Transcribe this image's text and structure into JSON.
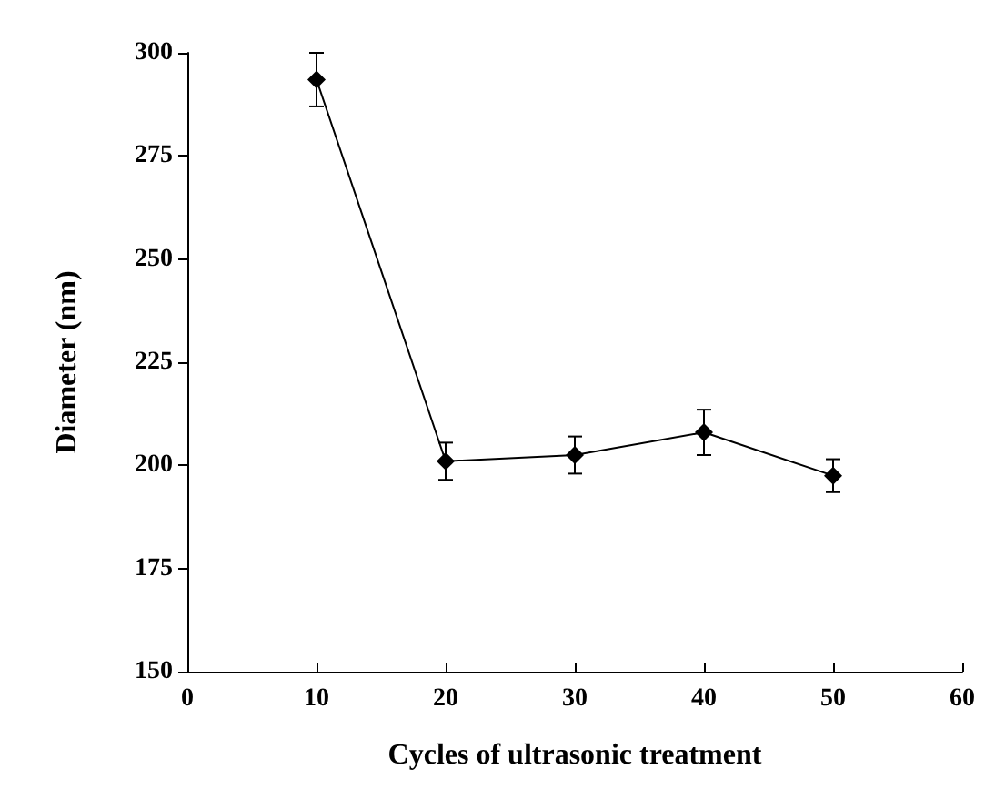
{
  "chart_data": {
    "type": "line",
    "xlabel": "Cycles of ultrasonic treatment",
    "ylabel": "Diameter (nm)",
    "x": [
      10,
      20,
      30,
      40,
      50
    ],
    "series": [
      {
        "color": "#000000",
        "values": [
          293.5,
          201,
          202.5,
          208,
          197.5
        ],
        "errors": [
          [
            287,
            300
          ],
          4.5,
          4.5,
          5.5,
          4
        ]
      }
    ],
    "xlim": [
      0,
      60
    ],
    "xticks": [
      0,
      10,
      20,
      30,
      40,
      50,
      60
    ],
    "ylim": [
      150,
      300
    ],
    "yticks": [
      150,
      175,
      200,
      225,
      250,
      275,
      300
    ],
    "marker": "diamond",
    "line_style": "solid"
  }
}
